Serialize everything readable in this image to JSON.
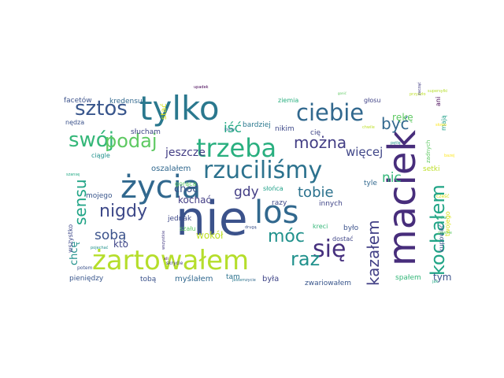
{
  "colors": {
    "background": "#ffffff",
    "palette": [
      "#440154",
      "#3b528b",
      "#21918c",
      "#5ec962",
      "#bddf26",
      "#fde725"
    ]
  },
  "words": [
    {
      "text": "nie",
      "c": "#3b528b"
    },
    {
      "text": "maciek",
      "c": "#472d7b"
    },
    {
      "text": "tylko",
      "c": "#2a788e"
    },
    {
      "text": "życia",
      "c": "#31688e"
    },
    {
      "text": "żartowałem",
      "c": "#b5de2b"
    },
    {
      "text": "los",
      "c": "#31688e"
    },
    {
      "text": "trzeba",
      "c": "#29af7f"
    },
    {
      "text": "rzuciliśmy",
      "c": "#2c728e"
    },
    {
      "text": "ciebie",
      "c": "#31688e"
    },
    {
      "text": "sztos",
      "c": "#39568c"
    },
    {
      "text": "swój",
      "c": "#35b779"
    },
    {
      "text": "podaj",
      "c": "#5ec962"
    },
    {
      "text": "kochałem",
      "c": "#20a486"
    },
    {
      "text": "się",
      "c": "#46307e"
    },
    {
      "text": "móc",
      "c": "#21918c"
    },
    {
      "text": "sensu",
      "c": "#20a486"
    },
    {
      "text": "nigdy",
      "c": "#3e4989"
    },
    {
      "text": "być",
      "c": "#31688e"
    },
    {
      "text": "można",
      "c": "#433e85"
    },
    {
      "text": "tobie",
      "c": "#2c728e"
    },
    {
      "text": "raz",
      "c": "#21918c"
    },
    {
      "text": "kazałem",
      "c": "#424086"
    },
    {
      "text": "nic",
      "c": "#35b779"
    },
    {
      "text": "sobą",
      "c": "#3b528b"
    },
    {
      "text": "iść",
      "c": "#22a884"
    },
    {
      "text": "gdy",
      "c": "#433e85"
    },
    {
      "text": "więcej",
      "c": "#404688"
    },
    {
      "text": "jeszcze",
      "c": "#433e85"
    },
    {
      "text": "chcę",
      "c": "#21918c"
    },
    {
      "text": "choć",
      "c": "#3b528b"
    },
    {
      "text": "kochać",
      "c": "#433e85"
    },
    {
      "text": "kto",
      "c": "#404688"
    },
    {
      "text": "tym",
      "c": "#3b528b"
    },
    {
      "text": "wokół",
      "c": "#bddf26"
    },
    {
      "text": "rękę",
      "c": "#5ec962"
    },
    {
      "text": "facetów",
      "c": "#3b528b"
    },
    {
      "text": "kredensu",
      "c": "#31688e"
    },
    {
      "text": "stać",
      "c": "#d8e219"
    },
    {
      "text": "ziemia",
      "c": "#29af7f"
    },
    {
      "text": "głosu",
      "c": "#414487"
    },
    {
      "text": "ani",
      "c": "#440154"
    },
    {
      "text": "mają",
      "c": "#1fa088"
    },
    {
      "text": "nędza",
      "c": "#3b528b"
    },
    {
      "text": "słucham",
      "c": "#404688"
    },
    {
      "text": "bardziej",
      "c": "#2a788e"
    },
    {
      "text": "nikim",
      "c": "#3e4989"
    },
    {
      "text": "cię",
      "c": "#404688"
    },
    {
      "text": "ciągle",
      "c": "#21918c"
    },
    {
      "text": "oszalałem",
      "c": "#31688e"
    },
    {
      "text": "gorąca",
      "c": "#5ec962"
    },
    {
      "text": "mojego",
      "c": "#39568c"
    },
    {
      "text": "słońca",
      "c": "#1fa088"
    },
    {
      "text": "razy",
      "c": "#3e4989"
    },
    {
      "text": "innych",
      "c": "#404688"
    },
    {
      "text": "tyle",
      "c": "#31688e"
    },
    {
      "text": "setki",
      "c": "#bddf26"
    },
    {
      "text": "zadnych",
      "c": "#5ec962"
    },
    {
      "text": "twojego",
      "c": "#d8e219"
    },
    {
      "text": "kupować",
      "c": "#3b528b"
    },
    {
      "text": "wszystko",
      "c": "#3e4989"
    },
    {
      "text": "jednak",
      "c": "#3e4989"
    },
    {
      "text": "szału",
      "c": "#5ec962"
    },
    {
      "text": "kreci",
      "c": "#35b779"
    },
    {
      "text": "było",
      "c": "#3b528b"
    },
    {
      "text": "dostać",
      "c": "#404688"
    },
    {
      "text": "pieniędzy",
      "c": "#39568c"
    },
    {
      "text": "tobą",
      "c": "#3b528b"
    },
    {
      "text": "myślałem",
      "c": "#31688e"
    },
    {
      "text": "tam",
      "c": "#2c728e"
    },
    {
      "text": "była",
      "c": "#404688"
    },
    {
      "text": "zwariowałem",
      "c": "#39568c"
    },
    {
      "text": "spałem",
      "c": "#35b779"
    },
    {
      "text": "upadek",
      "c": "#440154"
    },
    {
      "text": "gonić",
      "c": "#5ec962"
    },
    {
      "text": "przyszło",
      "c": "#bddf26"
    },
    {
      "text": "supersyłki",
      "c": "#b5de2b"
    },
    {
      "text": "pętlę",
      "c": "#21918c"
    },
    {
      "text": "zacząć",
      "c": "#433e85"
    },
    {
      "text": "potem",
      "c": "#3b528b"
    },
    {
      "text": "pojechać",
      "c": "#21918c"
    },
    {
      "text": "szansę",
      "c": "#22a884"
    },
    {
      "text": "kiedy",
      "c": "#2c728e"
    },
    {
      "text": "drugą",
      "c": "#3b528b"
    },
    {
      "text": "zycie",
      "c": "#31688e"
    },
    {
      "text": "jestem",
      "c": "#2a788e"
    },
    {
      "text": "wszystkie",
      "c": "#443a83"
    },
    {
      "text": "skrycie",
      "c": "#433e85"
    },
    {
      "text": "xii",
      "c": "#440154"
    },
    {
      "text": "znów",
      "c": "#35b779"
    },
    {
      "text": "jak",
      "c": "#22a884"
    },
    {
      "text": "pewnie",
      "c": "#5ec962"
    },
    {
      "text": "cześć",
      "c": "#d8e219"
    },
    {
      "text": "słowo",
      "c": "#fde725"
    },
    {
      "text": "chwile",
      "c": "#bddf26"
    },
    {
      "text": "bazej",
      "c": "#fde725"
    }
  ]
}
